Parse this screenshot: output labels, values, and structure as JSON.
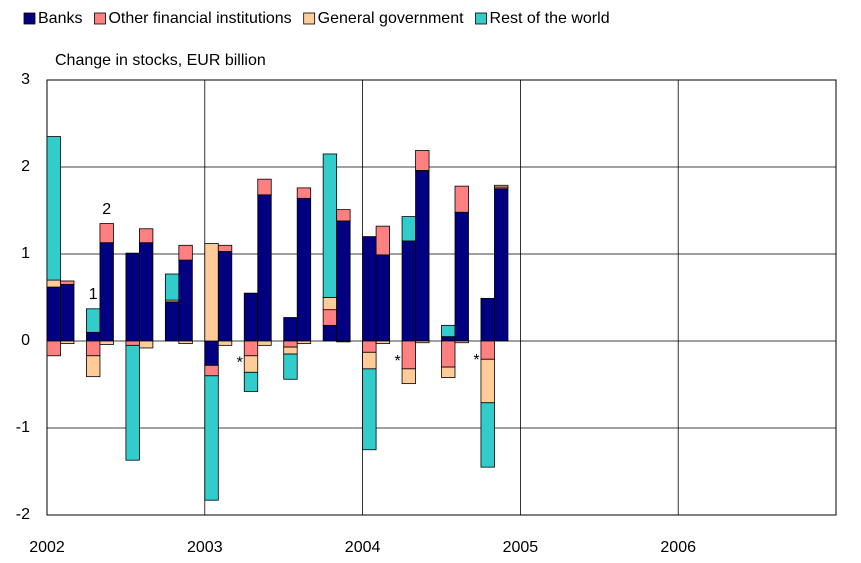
{
  "chart_data": {
    "type": "bar",
    "stacked": true,
    "y_axis_label": "Change in stocks, EUR billion",
    "categories": [
      null,
      null,
      null,
      null,
      null,
      null,
      null,
      null,
      null,
      null,
      null,
      null,
      null,
      null,
      null,
      null,
      null,
      null,
      null,
      null,
      null,
      null,
      null,
      null
    ],
    "x_years": [
      "2002",
      "2003",
      "2004",
      "2005",
      "2006"
    ],
    "series": [
      {
        "name": "Banks",
        "color": "#000080",
        "values": [
          0.62,
          0.65,
          0.1,
          1.13,
          1.01,
          1.13,
          0.45,
          0.93,
          -0.28,
          1.03,
          0.55,
          1.68,
          0.27,
          1.64,
          0.18,
          1.38,
          1.2,
          0.99,
          1.15,
          1.96,
          0.05,
          1.48,
          0.49,
          1.75
        ]
      },
      {
        "name": "Other financial institutions",
        "color": "#ff8080",
        "values": [
          -0.17,
          0.04,
          -0.17,
          0.22,
          -0.05,
          0.16,
          0,
          0.17,
          -0.12,
          0.07,
          -0.17,
          0.18,
          -0.07,
          0.12,
          0.18,
          0.13,
          -0.13,
          0.33,
          -0.32,
          0.23,
          -0.3,
          0.3,
          -0.21,
          0.02
        ]
      },
      {
        "name": "General government",
        "color": "#ffcc99",
        "values": [
          0.08,
          -0.03,
          -0.24,
          -0.04,
          0,
          -0.08,
          0.02,
          -0.03,
          1.12,
          -0.05,
          -0.19,
          -0.05,
          -0.08,
          -0.03,
          0.14,
          -0.01,
          -0.19,
          -0.03,
          -0.17,
          -0.02,
          -0.12,
          -0.02,
          -0.5,
          0.02
        ]
      },
      {
        "name": "Rest of the world",
        "color": "#33cccc",
        "values": [
          1.65,
          0,
          0.27,
          0,
          -1.32,
          0,
          0.3,
          0,
          -1.43,
          0,
          -0.22,
          0,
          -0.29,
          0,
          1.65,
          0,
          -0.93,
          0,
          0.28,
          0,
          0.13,
          0,
          -0.74,
          0
        ]
      }
    ],
    "annotations": [
      {
        "text": "1",
        "category": 2
      },
      {
        "text": "2",
        "category": 3
      },
      {
        "text": "*",
        "category": 9
      },
      {
        "text": "*",
        "category": 17
      },
      {
        "text": "*",
        "category": 21
      }
    ],
    "ylim": [
      -2,
      3
    ],
    "yticks": [
      -2,
      -1,
      0,
      1,
      2,
      3
    ],
    "grid": true
  }
}
